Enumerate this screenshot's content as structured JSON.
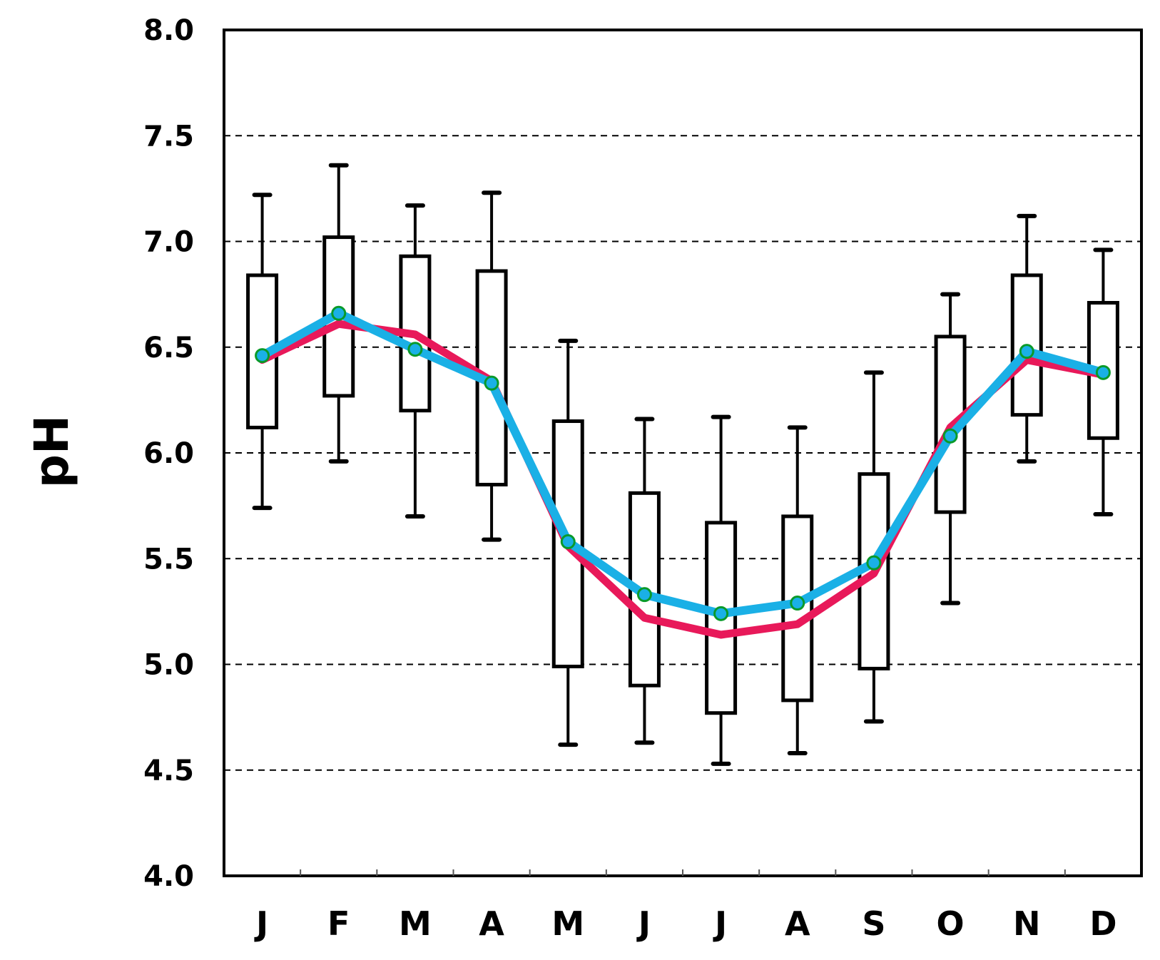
{
  "chart_data": {
    "type": "box",
    "ylabel": "pH",
    "xlabel": "",
    "ylim": [
      4.0,
      8.0
    ],
    "y_ticks": [
      "4.0",
      "4.5",
      "5.0",
      "5.5",
      "6.0",
      "6.5",
      "7.0",
      "7.5",
      "8.0"
    ],
    "grid": "horizontal dashed",
    "categories": [
      "J",
      "F",
      "M",
      "A",
      "M",
      "J",
      "J",
      "A",
      "S",
      "O",
      "N",
      "D"
    ],
    "boxes": [
      {
        "whisker_low": 5.74,
        "q1": 6.12,
        "q3": 6.84,
        "whisker_high": 7.22
      },
      {
        "whisker_low": 5.96,
        "q1": 6.27,
        "q3": 7.02,
        "whisker_high": 7.36
      },
      {
        "whisker_low": 5.7,
        "q1": 6.2,
        "q3": 6.93,
        "whisker_high": 7.17
      },
      {
        "whisker_low": 5.59,
        "q1": 5.85,
        "q3": 6.86,
        "whisker_high": 7.23
      },
      {
        "whisker_low": 4.62,
        "q1": 4.99,
        "q3": 6.15,
        "whisker_high": 6.53
      },
      {
        "whisker_low": 4.63,
        "q1": 4.9,
        "q3": 5.81,
        "whisker_high": 6.16
      },
      {
        "whisker_low": 4.53,
        "q1": 4.77,
        "q3": 5.67,
        "whisker_high": 6.17
      },
      {
        "whisker_low": 4.58,
        "q1": 4.83,
        "q3": 5.7,
        "whisker_high": 6.12
      },
      {
        "whisker_low": 4.73,
        "q1": 4.98,
        "q3": 5.9,
        "whisker_high": 6.38
      },
      {
        "whisker_low": 5.29,
        "q1": 5.72,
        "q3": 6.55,
        "whisker_high": 6.75
      },
      {
        "whisker_low": 5.96,
        "q1": 6.18,
        "q3": 6.84,
        "whisker_high": 7.12
      },
      {
        "whisker_low": 5.71,
        "q1": 6.07,
        "q3": 6.71,
        "whisker_high": 6.96
      }
    ],
    "series": [
      {
        "color": "#e8195a",
        "values": [
          6.44,
          6.61,
          6.56,
          6.34,
          5.56,
          5.22,
          5.14,
          5.19,
          5.43,
          6.12,
          6.44,
          6.37
        ]
      },
      {
        "color": "#1ab0e6",
        "marker_color": "#0a9a2a",
        "values": [
          6.46,
          6.66,
          6.49,
          6.33,
          5.58,
          5.33,
          5.24,
          5.29,
          5.48,
          6.08,
          6.48,
          6.38
        ]
      }
    ]
  }
}
